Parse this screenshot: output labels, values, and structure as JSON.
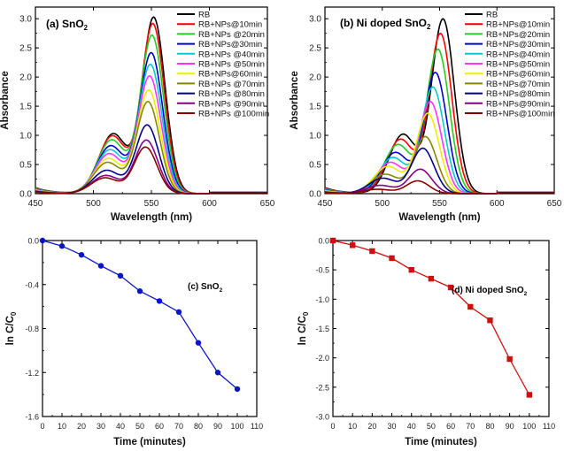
{
  "chart_data": [
    {
      "type": "line",
      "panel_label": "(a) SnO",
      "panel_label_sub": "2",
      "xlabel": "Wavelength (nm)",
      "ylabel": "Absorbance",
      "xlim": [
        450,
        650
      ],
      "ylim": [
        0,
        3.2
      ],
      "xticks": [
        450,
        500,
        550,
        600,
        650
      ],
      "yticks": [
        0.0,
        0.5,
        1.0,
        1.5,
        2.0,
        2.5,
        3.0
      ],
      "peak_wavelength": 552,
      "legend_position": "top-right",
      "series": [
        {
          "name": "RB",
          "color": "#000000",
          "peak": 3.03
        },
        {
          "name": "RB+NPs@10min",
          "color": "#ff0000",
          "peak": 2.92
        },
        {
          "name": "RB+NPs @20min",
          "color": "#22cc22",
          "peak": 2.72
        },
        {
          "name": "RB+NPs@30min",
          "color": "#0000cc",
          "peak": 2.42
        },
        {
          "name": "RB+NPs @40min",
          "color": "#00cccc",
          "peak": 2.22
        },
        {
          "name": "RB+NPs @50min",
          "color": "#ff33ff",
          "peak": 2.02
        },
        {
          "name": "RB+NPs@60min",
          "color": "#eeee00",
          "peak": 1.78
        },
        {
          "name": "RB+NPs @70min",
          "color": "#888800",
          "peak": 1.58
        },
        {
          "name": "RB+NPs @80min",
          "color": "#000088",
          "peak": 1.18
        },
        {
          "name": "RB+NPs @90min",
          "color": "#880088",
          "peak": 0.92
        },
        {
          "name": "RB+NPs @100min",
          "color": "#880000",
          "peak": 0.8
        }
      ]
    },
    {
      "type": "line",
      "panel_label": "(b) Ni doped SnO",
      "panel_label_sub": "2",
      "xlabel": "Wavelength (nm)",
      "ylabel": "Absorbance",
      "xlim": [
        450,
        650
      ],
      "ylim": [
        0,
        3.2
      ],
      "xticks": [
        450,
        500,
        550,
        600,
        650
      ],
      "yticks": [
        0.0,
        0.5,
        1.0,
        1.5,
        2.0,
        2.5,
        3.0
      ],
      "peak_wavelength": 553,
      "legend_position": "top-right",
      "series": [
        {
          "name": "RB",
          "color": "#000000",
          "peak": 3.0
        },
        {
          "name": "RB+NPs@10min",
          "color": "#ff0000",
          "peak": 2.75
        },
        {
          "name": "RB+NPs@20min",
          "color": "#22cc22",
          "peak": 2.48
        },
        {
          "name": "RB+NPs@30min",
          "color": "#0000cc",
          "peak": 2.08
        },
        {
          "name": "RB+NPs@40min",
          "color": "#00cccc",
          "peak": 1.83
        },
        {
          "name": "RB+NPs@50min",
          "color": "#ff33ff",
          "peak": 1.58
        },
        {
          "name": "RB+NPs@60min",
          "color": "#eeee00",
          "peak": 1.38
        },
        {
          "name": "RB+NPs@70min",
          "color": "#888800",
          "peak": 0.98
        },
        {
          "name": "RB+NPs@80min",
          "color": "#000088",
          "peak": 0.78
        },
        {
          "name": "RB+NPs@90min",
          "color": "#880088",
          "peak": 0.42
        },
        {
          "name": "RB+NPs@100min",
          "color": "#880000",
          "peak": 0.22
        }
      ]
    },
    {
      "type": "line",
      "panel_label": "(c) SnO",
      "panel_label_sub": "2",
      "xlabel": "Time (minutes)",
      "ylabel": "ln C/C",
      "ylabel_sub": "0",
      "xlim": [
        0,
        110
      ],
      "ylim": [
        -1.6,
        0.0
      ],
      "xticks": [
        0,
        10,
        20,
        30,
        40,
        50,
        60,
        70,
        80,
        90,
        100,
        110
      ],
      "yticks": [
        0.0,
        -0.4,
        -0.8,
        -1.2,
        -1.6
      ],
      "ytick_labels": [
        "0.0",
        "-0.4",
        "-0.8",
        "-1.2",
        "-1.6"
      ],
      "color": "#0a14c8",
      "marker": "circle",
      "x": [
        0,
        10,
        20,
        30,
        40,
        50,
        60,
        70,
        80,
        90,
        100
      ],
      "y": [
        0.0,
        -0.05,
        -0.13,
        -0.23,
        -0.32,
        -0.46,
        -0.55,
        -0.65,
        -0.93,
        -1.2,
        -1.35
      ]
    },
    {
      "type": "line",
      "panel_label": "(d) Ni doped SnO",
      "panel_label_sub": "2",
      "xlabel": "Time (minutes)",
      "ylabel": "ln C/C",
      "ylabel_sub": "0",
      "xlim": [
        0,
        110
      ],
      "ylim": [
        -3.0,
        0.0
      ],
      "xticks": [
        0,
        10,
        20,
        30,
        40,
        50,
        60,
        70,
        80,
        90,
        100,
        110
      ],
      "yticks": [
        0.0,
        -0.5,
        -1.0,
        -1.5,
        -2.0,
        -2.5,
        -3.0
      ],
      "ytick_labels": [
        "0.0",
        "-0.5",
        "-1.0",
        "-1.5",
        "-2.0",
        "-2.5",
        "-3.0"
      ],
      "color": "#cc1010",
      "marker": "square",
      "x": [
        0,
        10,
        20,
        30,
        40,
        50,
        60,
        70,
        80,
        90,
        100
      ],
      "y": [
        0.0,
        -0.08,
        -0.18,
        -0.3,
        -0.5,
        -0.65,
        -0.8,
        -1.13,
        -1.36,
        -2.02,
        -2.63
      ]
    }
  ]
}
